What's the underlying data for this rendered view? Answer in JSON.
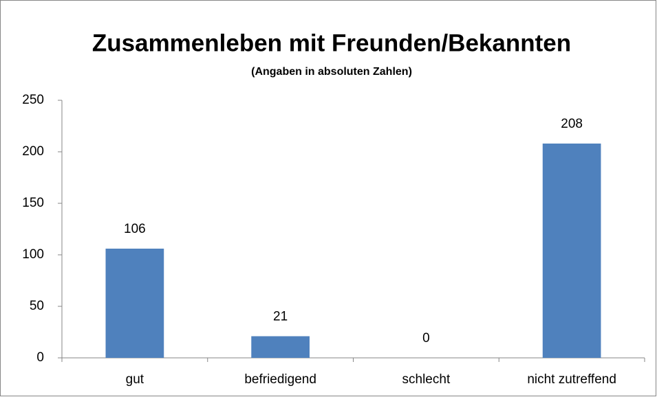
{
  "chart_data": {
    "type": "bar",
    "title": "Zusammenleben mit Freunden/Bekannten",
    "subtitle": "(Angaben in absoluten Zahlen)",
    "categories": [
      "gut",
      "befriedigend",
      "schlecht",
      "nicht zutreffend"
    ],
    "values": [
      106,
      21,
      0,
      208
    ],
    "color": "#4f81bd",
    "ylim": [
      0,
      250
    ],
    "yticks": [
      0,
      50,
      100,
      150,
      200,
      250
    ],
    "grid": false
  }
}
